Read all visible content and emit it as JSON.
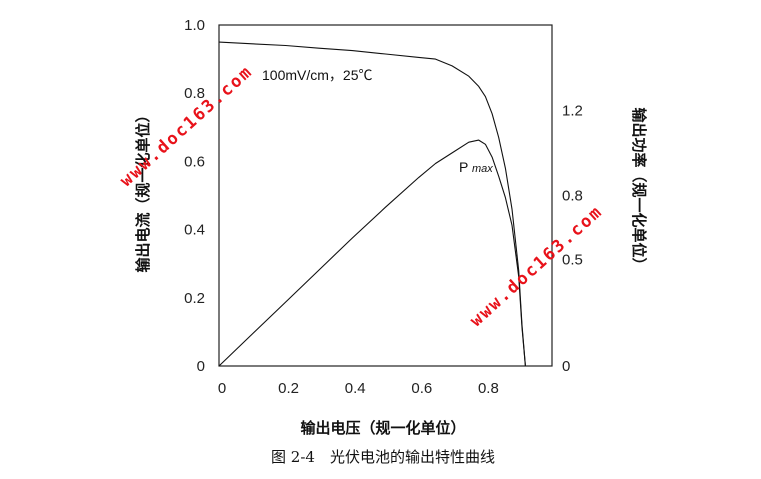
{
  "chart_data": {
    "type": "line",
    "x": [
      0,
      0.1,
      0.2,
      0.3,
      0.4,
      0.5,
      0.6,
      0.65,
      0.7,
      0.75,
      0.78,
      0.8,
      0.82,
      0.84,
      0.86,
      0.88,
      0.9,
      0.91,
      0.92
    ],
    "series": [
      {
        "name": "current",
        "axis": "left",
        "values": [
          0.95,
          0.945,
          0.94,
          0.932,
          0.925,
          0.915,
          0.905,
          0.9,
          0.88,
          0.85,
          0.82,
          0.79,
          0.74,
          0.67,
          0.58,
          0.46,
          0.28,
          0.12,
          0
        ]
      },
      {
        "name": "power",
        "axis": "right",
        "values": [
          0,
          0.15,
          0.3,
          0.45,
          0.6,
          0.745,
          0.885,
          0.95,
          1.0,
          1.05,
          1.06,
          1.04,
          0.98,
          0.89,
          0.79,
          0.66,
          0.42,
          0.18,
          0
        ]
      }
    ],
    "xlim": [
      0,
      1.0
    ],
    "ylim": [
      0,
      1.0
    ],
    "y2lim": [
      0,
      1.6
    ],
    "x_ticks": [
      "0",
      "0.2",
      "0.4",
      "0.6",
      "0.8"
    ],
    "y_ticks": [
      "0",
      "0.2",
      "0.4",
      "0.6",
      "0.8",
      "1.0"
    ],
    "y2_ticks": [
      "0",
      "0.5",
      "0.8",
      "1.2"
    ],
    "y2_tick_values": [
      0,
      0.5,
      0.8,
      1.2
    ],
    "xlabel": "输出电压（规一化单位）",
    "ylabel": "输出电流（规一化单位）",
    "y2label": "输出功率（规一化单位）",
    "annotations": {
      "condition": "100mV/cm，25℃",
      "pmax": "P",
      "pmax_sub": "max"
    },
    "grid": false
  },
  "caption": "图 2-4　光伏电池的输出特性曲线",
  "watermark": "www.doc163.com",
  "colors": {
    "line": "#111111",
    "frame": "#222222",
    "watermark": "#e8121a"
  }
}
